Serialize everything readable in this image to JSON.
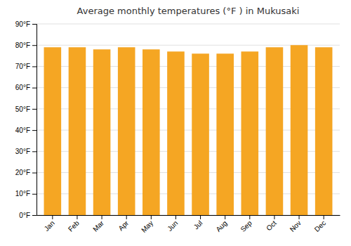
{
  "chart_data": {
    "type": "bar",
    "title": "Average monthly temperatures (°F ) in Mukusaki",
    "categories": [
      "Jan",
      "Feb",
      "Mar",
      "Apr",
      "May",
      "Jun",
      "Jul",
      "Aug",
      "Sep",
      "Oct",
      "Nov",
      "Dec"
    ],
    "values": [
      79,
      79,
      78,
      79,
      78,
      77,
      76,
      76,
      77,
      79,
      80,
      79
    ],
    "color": "#F5A623",
    "ylim": [
      0,
      90
    ],
    "yticks": [
      {
        "value": 0,
        "label": "0°F"
      },
      {
        "value": 10,
        "label": "10°F"
      },
      {
        "value": 20,
        "label": "20°F"
      },
      {
        "value": 30,
        "label": "30°F"
      },
      {
        "value": 40,
        "label": "40°F"
      },
      {
        "value": 50,
        "label": "50°F"
      },
      {
        "value": 60,
        "label": "60°F"
      },
      {
        "value": 70,
        "label": "70°F"
      },
      {
        "value": 80,
        "label": "80°F"
      },
      {
        "value": 90,
        "label": "90°F"
      }
    ],
    "grid": true
  }
}
